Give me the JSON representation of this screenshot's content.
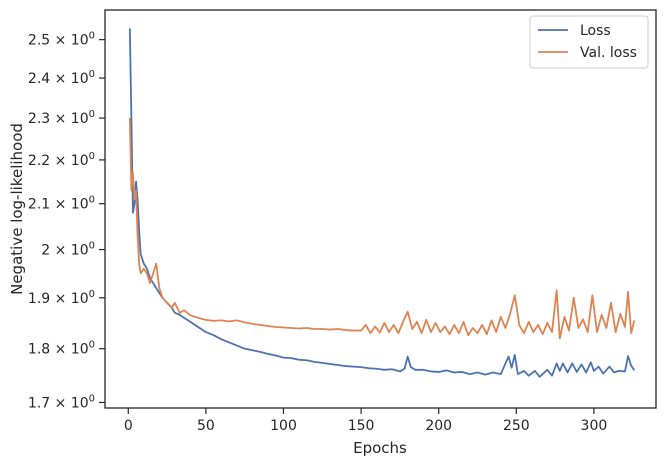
{
  "chart_data": {
    "type": "line",
    "title": "",
    "xlabel": "Epochs",
    "ylabel": "Negative log-likelihood",
    "xlim": [
      -15,
      340
    ],
    "ylim": [
      1.69,
      2.58
    ],
    "yscale": "log",
    "grid": false,
    "legend": "top-right",
    "x_ticks": [
      0,
      50,
      100,
      150,
      200,
      250,
      300
    ],
    "x_tick_labels": [
      "0",
      "50",
      "100",
      "150",
      "200",
      "250",
      "300"
    ],
    "y_ticks": [
      1.7,
      1.8,
      1.9,
      2.0,
      2.1,
      2.2,
      2.3,
      2.4,
      2.5
    ],
    "y_tick_labels": [
      {
        "mantissa": "1.7",
        "base": "× 10",
        "exp": "0"
      },
      {
        "mantissa": "1.8",
        "base": "× 10",
        "exp": "0"
      },
      {
        "mantissa": "1.9",
        "base": "× 10",
        "exp": "0"
      },
      {
        "mantissa": "2",
        "base": "× 10",
        "exp": "0"
      },
      {
        "mantissa": "2.1",
        "base": "× 10",
        "exp": "0"
      },
      {
        "mantissa": "2.2",
        "base": "× 10",
        "exp": "0"
      },
      {
        "mantissa": "2.3",
        "base": "× 10",
        "exp": "0"
      },
      {
        "mantissa": "2.4",
        "base": "× 10",
        "exp": "0"
      },
      {
        "mantissa": "2.5",
        "base": "× 10",
        "exp": "0"
      }
    ],
    "series": [
      {
        "name": "Loss",
        "color": "#4c72b0",
        "points": [
          [
            1,
            2.53
          ],
          [
            2,
            2.3
          ],
          [
            3,
            2.08
          ],
          [
            4,
            2.1
          ],
          [
            5,
            2.15
          ],
          [
            6,
            2.11
          ],
          [
            7,
            2.04
          ],
          [
            8,
            1.99
          ],
          [
            10,
            1.97
          ],
          [
            12,
            1.96
          ],
          [
            14,
            1.94
          ],
          [
            16,
            1.93
          ],
          [
            18,
            1.92
          ],
          [
            20,
            1.91
          ],
          [
            22,
            1.9
          ],
          [
            25,
            1.89
          ],
          [
            28,
            1.88
          ],
          [
            30,
            1.87
          ],
          [
            33,
            1.866
          ],
          [
            36,
            1.86
          ],
          [
            40,
            1.852
          ],
          [
            45,
            1.842
          ],
          [
            50,
            1.832
          ],
          [
            55,
            1.826
          ],
          [
            60,
            1.818
          ],
          [
            65,
            1.812
          ],
          [
            70,
            1.806
          ],
          [
            75,
            1.8
          ],
          [
            80,
            1.797
          ],
          [
            85,
            1.794
          ],
          [
            90,
            1.79
          ],
          [
            95,
            1.787
          ],
          [
            100,
            1.783
          ],
          [
            105,
            1.782
          ],
          [
            110,
            1.779
          ],
          [
            115,
            1.778
          ],
          [
            120,
            1.775
          ],
          [
            125,
            1.773
          ],
          [
            130,
            1.771
          ],
          [
            135,
            1.769
          ],
          [
            140,
            1.767
          ],
          [
            145,
            1.766
          ],
          [
            150,
            1.765
          ],
          [
            155,
            1.763
          ],
          [
            160,
            1.762
          ],
          [
            165,
            1.76
          ],
          [
            170,
            1.761
          ],
          [
            175,
            1.757
          ],
          [
            178,
            1.762
          ],
          [
            180,
            1.785
          ],
          [
            182,
            1.765
          ],
          [
            185,
            1.76
          ],
          [
            190,
            1.76
          ],
          [
            195,
            1.757
          ],
          [
            200,
            1.756
          ],
          [
            205,
            1.759
          ],
          [
            210,
            1.755
          ],
          [
            215,
            1.756
          ],
          [
            220,
            1.752
          ],
          [
            225,
            1.755
          ],
          [
            230,
            1.751
          ],
          [
            235,
            1.755
          ],
          [
            240,
            1.752
          ],
          [
            243,
            1.772
          ],
          [
            245,
            1.785
          ],
          [
            247,
            1.764
          ],
          [
            249,
            1.788
          ],
          [
            251,
            1.752
          ],
          [
            255,
            1.758
          ],
          [
            258,
            1.749
          ],
          [
            262,
            1.758
          ],
          [
            265,
            1.747
          ],
          [
            270,
            1.76
          ],
          [
            273,
            1.749
          ],
          [
            276,
            1.772
          ],
          [
            278,
            1.758
          ],
          [
            280,
            1.772
          ],
          [
            283,
            1.755
          ],
          [
            286,
            1.772
          ],
          [
            289,
            1.756
          ],
          [
            292,
            1.77
          ],
          [
            295,
            1.755
          ],
          [
            298,
            1.774
          ],
          [
            300,
            1.758
          ],
          [
            303,
            1.766
          ],
          [
            306,
            1.753
          ],
          [
            310,
            1.766
          ],
          [
            313,
            1.755
          ],
          [
            316,
            1.758
          ],
          [
            320,
            1.757
          ],
          [
            322,
            1.786
          ],
          [
            324,
            1.768
          ],
          [
            326,
            1.759
          ]
        ]
      },
      {
        "name": "Val. loss",
        "color": "#dd8452",
        "points": [
          [
            1,
            2.3
          ],
          [
            2,
            2.13
          ],
          [
            3,
            2.17
          ],
          [
            4,
            2.11
          ],
          [
            5,
            2.13
          ],
          [
            6,
            2.03
          ],
          [
            7,
            1.97
          ],
          [
            8,
            1.95
          ],
          [
            10,
            1.96
          ],
          [
            12,
            1.95
          ],
          [
            14,
            1.93
          ],
          [
            16,
            1.95
          ],
          [
            18,
            1.97
          ],
          [
            20,
            1.92
          ],
          [
            22,
            1.9
          ],
          [
            25,
            1.89
          ],
          [
            28,
            1.88
          ],
          [
            30,
            1.89
          ],
          [
            33,
            1.87
          ],
          [
            36,
            1.875
          ],
          [
            40,
            1.865
          ],
          [
            45,
            1.86
          ],
          [
            50,
            1.856
          ],
          [
            55,
            1.854
          ],
          [
            60,
            1.855
          ],
          [
            65,
            1.853
          ],
          [
            70,
            1.855
          ],
          [
            75,
            1.851
          ],
          [
            80,
            1.848
          ],
          [
            85,
            1.846
          ],
          [
            90,
            1.844
          ],
          [
            95,
            1.842
          ],
          [
            100,
            1.841
          ],
          [
            105,
            1.84
          ],
          [
            110,
            1.839
          ],
          [
            115,
            1.84
          ],
          [
            120,
            1.838
          ],
          [
            125,
            1.838
          ],
          [
            130,
            1.837
          ],
          [
            135,
            1.838
          ],
          [
            140,
            1.836
          ],
          [
            145,
            1.835
          ],
          [
            150,
            1.835
          ],
          [
            153,
            1.846
          ],
          [
            156,
            1.83
          ],
          [
            159,
            1.843
          ],
          [
            162,
            1.831
          ],
          [
            165,
            1.85
          ],
          [
            168,
            1.832
          ],
          [
            171,
            1.846
          ],
          [
            174,
            1.83
          ],
          [
            177,
            1.852
          ],
          [
            180,
            1.872
          ],
          [
            183,
            1.838
          ],
          [
            186,
            1.852
          ],
          [
            189,
            1.83
          ],
          [
            192,
            1.856
          ],
          [
            195,
            1.832
          ],
          [
            198,
            1.85
          ],
          [
            201,
            1.832
          ],
          [
            204,
            1.843
          ],
          [
            207,
            1.828
          ],
          [
            210,
            1.846
          ],
          [
            213,
            1.83
          ],
          [
            216,
            1.852
          ],
          [
            219,
            1.826
          ],
          [
            222,
            1.84
          ],
          [
            225,
            1.83
          ],
          [
            228,
            1.846
          ],
          [
            231,
            1.828
          ],
          [
            234,
            1.855
          ],
          [
            237,
            1.832
          ],
          [
            240,
            1.862
          ],
          [
            243,
            1.84
          ],
          [
            246,
            1.868
          ],
          [
            249,
            1.905
          ],
          [
            252,
            1.845
          ],
          [
            255,
            1.83
          ],
          [
            258,
            1.852
          ],
          [
            261,
            1.832
          ],
          [
            264,
            1.846
          ],
          [
            267,
            1.828
          ],
          [
            270,
            1.85
          ],
          [
            273,
            1.832
          ],
          [
            276,
            1.915
          ],
          [
            278,
            1.82
          ],
          [
            281,
            1.862
          ],
          [
            284,
            1.835
          ],
          [
            287,
            1.9
          ],
          [
            290,
            1.84
          ],
          [
            293,
            1.857
          ],
          [
            296,
            1.832
          ],
          [
            299,
            1.905
          ],
          [
            302,
            1.832
          ],
          [
            305,
            1.866
          ],
          [
            308,
            1.84
          ],
          [
            311,
            1.89
          ],
          [
            314,
            1.832
          ],
          [
            317,
            1.868
          ],
          [
            320,
            1.842
          ],
          [
            322,
            1.912
          ],
          [
            324,
            1.83
          ],
          [
            326,
            1.855
          ]
        ]
      }
    ]
  }
}
